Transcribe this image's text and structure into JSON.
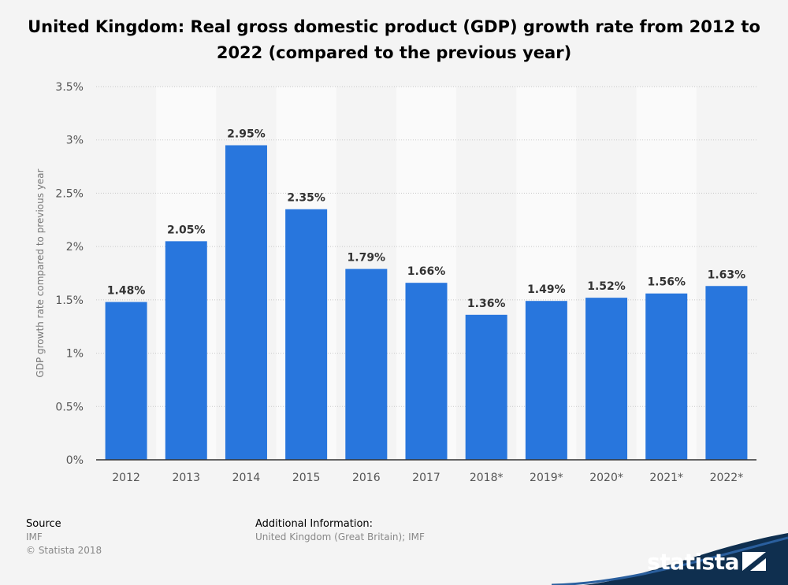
{
  "title_line1": "United Kingdom: Real gross domestic product (GDP) growth rate from 2012 to",
  "title_line2": "2022 (compared to the previous year)",
  "chart_data": {
    "type": "bar",
    "categories": [
      "2012",
      "2013",
      "2014",
      "2015",
      "2016",
      "2017",
      "2018*",
      "2019*",
      "2020*",
      "2021*",
      "2022*"
    ],
    "values": [
      1.48,
      2.05,
      2.95,
      2.35,
      1.79,
      1.66,
      1.36,
      1.49,
      1.52,
      1.56,
      1.63
    ],
    "data_labels": [
      "1.48%",
      "2.05%",
      "2.95%",
      "2.35%",
      "1.79%",
      "1.66%",
      "1.36%",
      "1.49%",
      "1.52%",
      "1.56%",
      "1.63%"
    ],
    "ylabel": "GDP growth rate compared to previous year",
    "ylim": [
      0,
      3.5
    ],
    "yticks": [
      0,
      0.5,
      1,
      1.5,
      2,
      2.5,
      3,
      3.5
    ],
    "ytick_labels": [
      "0%",
      "0.5%",
      "1%",
      "1.5%",
      "2%",
      "2.5%",
      "3%",
      "3.5%"
    ],
    "grid": true,
    "bar_color": "#2876dd"
  },
  "footer": {
    "source_head": "Source",
    "source_lines": [
      "IMF",
      "© Statista 2018"
    ],
    "info_head": "Additional Information:",
    "info_text": "United Kingdom (Great Britain); IMF"
  },
  "brand": "statista",
  "brand_color": "#0f2f4f"
}
